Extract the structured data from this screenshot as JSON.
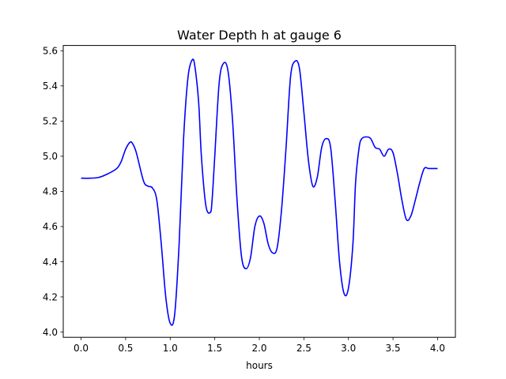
{
  "chart_data": {
    "type": "line",
    "title": "Water Depth h at gauge 6",
    "xlabel": "hours",
    "ylabel": "",
    "xlim": [
      -0.2,
      4.2
    ],
    "ylim": [
      3.97,
      5.63
    ],
    "x_ticks": [
      0.0,
      0.5,
      1.0,
      1.5,
      2.0,
      2.5,
      3.0,
      3.5,
      4.0
    ],
    "x_tick_labels": [
      "0.0",
      "0.5",
      "1.0",
      "1.5",
      "2.0",
      "2.5",
      "3.0",
      "3.5",
      "4.0"
    ],
    "y_ticks": [
      4.0,
      4.2,
      4.4,
      4.6,
      4.8,
      5.0,
      5.2,
      5.4,
      5.6
    ],
    "y_tick_labels": [
      "4.0",
      "4.2",
      "4.4",
      "4.6",
      "4.8",
      "5.0",
      "5.2",
      "5.4",
      "5.6"
    ],
    "grid": false,
    "legend": "none",
    "series": [
      {
        "color": "#0000ff",
        "x": [
          0.0,
          0.1,
          0.2,
          0.3,
          0.4,
          0.45,
          0.5,
          0.55,
          0.58,
          0.62,
          0.7,
          0.75,
          0.8,
          0.85,
          0.9,
          0.95,
          1.0,
          1.05,
          1.1,
          1.15,
          1.2,
          1.25,
          1.28,
          1.32,
          1.35,
          1.4,
          1.45,
          1.47,
          1.5,
          1.55,
          1.6,
          1.65,
          1.7,
          1.75,
          1.8,
          1.85,
          1.9,
          1.95,
          2.0,
          2.05,
          2.1,
          2.15,
          2.2,
          2.25,
          2.3,
          2.35,
          2.4,
          2.45,
          2.5,
          2.55,
          2.6,
          2.65,
          2.7,
          2.75,
          2.8,
          2.85,
          2.9,
          2.95,
          3.0,
          3.05,
          3.08,
          3.12,
          3.15,
          3.2,
          3.25,
          3.3,
          3.35,
          3.4,
          3.45,
          3.5,
          3.55,
          3.6,
          3.65,
          3.7,
          3.75,
          3.8,
          3.85,
          3.9,
          3.95,
          4.0
        ],
        "y": [
          4.875,
          4.875,
          4.88,
          4.9,
          4.93,
          4.97,
          5.04,
          5.08,
          5.07,
          5.02,
          4.86,
          4.83,
          4.82,
          4.75,
          4.5,
          4.2,
          4.05,
          4.1,
          4.5,
          5.1,
          5.45,
          5.55,
          5.5,
          5.3,
          5.0,
          4.72,
          4.68,
          4.75,
          5.0,
          5.42,
          5.53,
          5.48,
          5.2,
          4.75,
          4.43,
          4.36,
          4.42,
          4.6,
          4.66,
          4.62,
          4.5,
          4.45,
          4.48,
          4.7,
          5.05,
          5.45,
          5.54,
          5.5,
          5.25,
          4.98,
          4.83,
          4.88,
          5.05,
          5.1,
          5.05,
          4.75,
          4.4,
          4.22,
          4.25,
          4.5,
          4.85,
          5.05,
          5.1,
          5.11,
          5.1,
          5.05,
          5.04,
          5.0,
          5.04,
          5.02,
          4.9,
          4.75,
          4.64,
          4.66,
          4.75,
          4.85,
          4.93,
          4.93,
          4.93,
          4.93
        ]
      }
    ]
  }
}
